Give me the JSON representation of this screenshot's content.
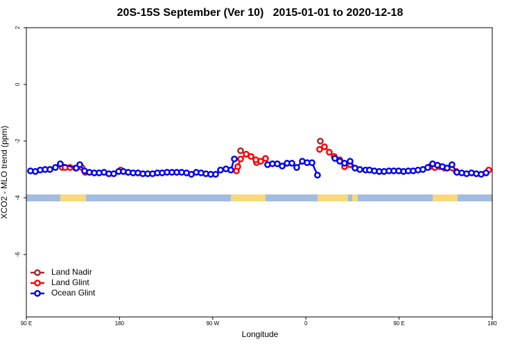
{
  "chart_data": {
    "type": "line",
    "title": "20S-15S September (Ver 10)   2015-01-01 to 2020-12-18",
    "x_label": "Longitude",
    "y_label": "XCO2 - MLO trend (ppm)",
    "xlim": [
      90,
      540
    ],
    "xticks": [
      {
        "value": 90,
        "label": "90 E"
      },
      {
        "value": 180,
        "label": "180"
      },
      {
        "value": 270,
        "label": "90 W"
      },
      {
        "value": 360,
        "label": "0"
      },
      {
        "value": 450,
        "label": "90 E"
      },
      {
        "value": 540,
        "label": "180"
      }
    ],
    "ylim": [
      -8.2,
      2
    ],
    "yticks": [
      2,
      0,
      -2,
      -4,
      -6
    ],
    "legend_position": "bottom-left",
    "series": [
      {
        "name": "Land Nadir",
        "color": "#a52a2a",
        "x": [
          124.8,
          200,
          296.9,
          305,
          312.3,
          340,
          373.9
        ],
        "values": [
          -2.93,
          null,
          -2.34,
          null,
          -2.76,
          null,
          -2.0
        ]
      },
      {
        "name": "Land Glint",
        "color": "#ff0000",
        "x": [
          127.5,
          132.2,
          137.5,
          143.6,
          146.9,
          160,
          181.1,
          260,
          287.5,
          292.9,
          294.2,
          296.9,
          302.3,
          307.0,
          311.6,
          316.3,
          321.0,
          350,
          373.2,
          377.9,
          382.6,
          387.3,
          392.7,
          397.3,
          402.7,
          460,
          479.7,
          484.4,
          489.1,
          493.8,
          505.2,
          520,
          536.6
        ],
        "values": [
          -2.93,
          -2.93,
          -2.95,
          -2.93,
          -3.1,
          null,
          -3.02,
          null,
          -3.02,
          -3.05,
          -2.9,
          -2.63,
          -2.46,
          -2.54,
          -2.66,
          -2.71,
          -2.61,
          null,
          -2.29,
          -2.2,
          -2.39,
          -2.54,
          -2.66,
          -2.9,
          -2.83,
          null,
          -2.9,
          -2.93,
          -2.9,
          -2.95,
          -3.07,
          null,
          -3.02
        ]
      },
      {
        "name": "Ocean Glint",
        "color": "#0000ee",
        "x": [
          94.0,
          98.7,
          103.4,
          108.1,
          112.8,
          118.1,
          122.8,
          138.2,
          141.6,
          146.2,
          150.9,
          155.6,
          160.3,
          165.0,
          169.7,
          174.4,
          179.1,
          183.7,
          188.4,
          193.1,
          197.8,
          202.5,
          207.2,
          211.9,
          216.6,
          221.2,
          225.9,
          230.6,
          235.3,
          240.0,
          244.7,
          249.4,
          254.1,
          258.7,
          263.4,
          268.1,
          272.8,
          277.5,
          282.8,
          287.5,
          290.9,
          307,
          323.0,
          327.7,
          332.4,
          337.1,
          341.8,
          346.5,
          351.1,
          356.5,
          361.2,
          365.9,
          371.2,
          380,
          388.0,
          392.7,
          397.3,
          402.7,
          407.4,
          412.1,
          417.7,
          421.4,
          426.1,
          430.8,
          435.5,
          440.2,
          444.9,
          449.6,
          454.3,
          458.9,
          463.6,
          468.3,
          473.0,
          477.7,
          482.4,
          487.1,
          491.8,
          496.4,
          501.1,
          505.8,
          510.5,
          515.2,
          519.9,
          524.6,
          529.3,
          534.0
        ],
        "values": [
          -3.05,
          -3.07,
          -3.02,
          -3.0,
          -3.0,
          -2.93,
          -2.8,
          -2.95,
          -2.83,
          -3.05,
          -3.1,
          -3.12,
          -3.12,
          -3.1,
          -3.15,
          -3.15,
          -3.07,
          -3.07,
          -3.1,
          -3.12,
          -3.12,
          -3.15,
          -3.15,
          -3.15,
          -3.12,
          -3.12,
          -3.1,
          -3.1,
          -3.1,
          -3.1,
          -3.12,
          -3.17,
          -3.1,
          -3.12,
          -3.15,
          -3.17,
          -3.17,
          -3.02,
          -2.98,
          -3.02,
          -2.63,
          null,
          -2.83,
          -2.8,
          -2.8,
          -2.88,
          -2.78,
          -2.78,
          -2.93,
          -2.71,
          -2.76,
          -2.76,
          -3.2,
          null,
          -2.61,
          -2.71,
          -2.78,
          -2.71,
          -2.95,
          -3.0,
          -3.02,
          -3.02,
          -3.05,
          -3.07,
          -3.07,
          -3.05,
          -3.05,
          -3.05,
          -3.07,
          -3.05,
          -3.05,
          -3.02,
          -3.0,
          -2.93,
          -2.8,
          -2.85,
          -2.9,
          -2.95,
          -2.83,
          -3.1,
          -3.12,
          -3.15,
          -3.12,
          -3.15,
          -3.17,
          -3.12
        ]
      }
    ]
  }
}
